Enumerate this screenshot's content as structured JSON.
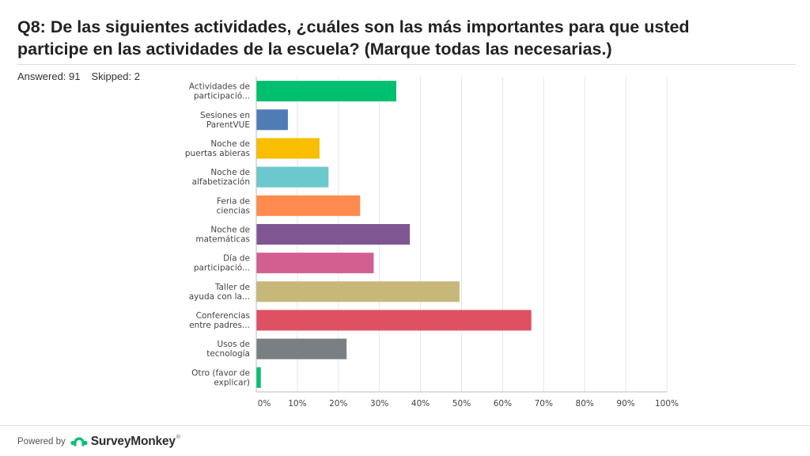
{
  "question": {
    "title_line1": "Q8: De las siguientes actividades, ¿cuáles son las más importantes para que usted",
    "title_line2": "participe en las actividades de la escuela? (Marque todas las necesarias.)",
    "answered_label": "Answered: 91",
    "skipped_label": "Skipped: 2"
  },
  "chart_data": {
    "type": "bar",
    "orientation": "horizontal",
    "categories": [
      [
        "Actividades de",
        "participació..."
      ],
      [
        "Sesiones en",
        "ParentVUE"
      ],
      [
        "Noche de",
        "puertas abieras"
      ],
      [
        "Noche de",
        "alfabetización"
      ],
      [
        "Feria de",
        "ciencias"
      ],
      [
        "Noche de",
        "matemáticas"
      ],
      [
        "Día de",
        "participació..."
      ],
      [
        "Taller de",
        "ayuda con la..."
      ],
      [
        "Conferencias",
        "entre padres..."
      ],
      [
        "Usos de",
        "tecnología"
      ],
      [
        "Otro (favor de",
        "explicar)"
      ]
    ],
    "values": [
      34.1,
      7.7,
      15.4,
      17.6,
      25.3,
      37.4,
      28.6,
      49.5,
      67.0,
      22.0,
      1.1
    ],
    "colors": [
      "#00bf6f",
      "#507cb6",
      "#f9be00",
      "#6bc8cd",
      "#ff8b4f",
      "#7f5691",
      "#d25f90",
      "#c7b879",
      "#de5162",
      "#7a7f84",
      "#00bf6f"
    ],
    "x_ticks": [
      "0%",
      "10%",
      "20%",
      "30%",
      "40%",
      "50%",
      "60%",
      "70%",
      "80%",
      "90%",
      "100%"
    ],
    "xlim": [
      0,
      100
    ],
    "grid": true,
    "title": "",
    "xlabel": "",
    "ylabel": ""
  },
  "footer": {
    "powered_by": "Powered by",
    "brand": "SurveyMonkey",
    "tm": "®"
  }
}
